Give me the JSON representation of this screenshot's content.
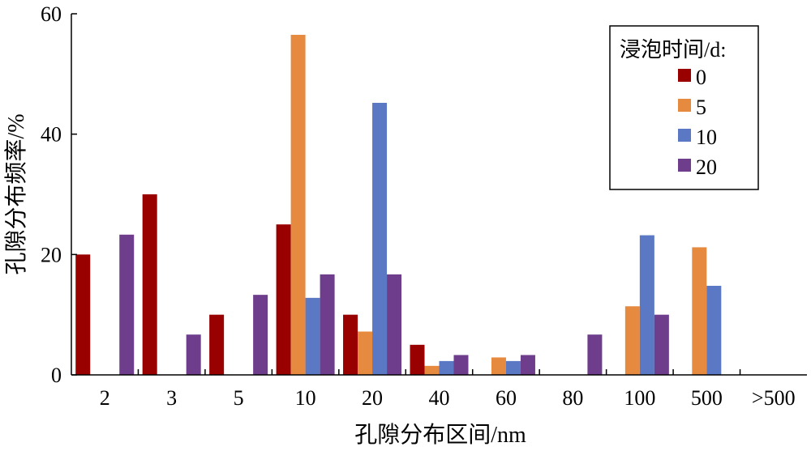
{
  "chart_data": {
    "type": "bar",
    "title": "",
    "xlabel": "孔隙分布区间/nm",
    "ylabel": "孔隙分布频率/%",
    "ylim": [
      0,
      60
    ],
    "yticks": [
      "0",
      "20",
      "40",
      "60"
    ],
    "categories": [
      "2",
      "3",
      "5",
      "10",
      "20",
      "40",
      "60",
      "80",
      "100",
      "500",
      ">500"
    ],
    "legend": {
      "title": "浸泡时间/d:",
      "position": "top-right"
    },
    "series": [
      {
        "name": "0",
        "color": "#990000",
        "values": [
          20,
          30,
          10,
          25,
          10,
          5,
          0,
          0,
          0,
          0,
          0
        ]
      },
      {
        "name": "5",
        "color": "#E68A40",
        "values": [
          0,
          0,
          0,
          56.5,
          7.2,
          1.5,
          2.9,
          0,
          11.4,
          21.2,
          0
        ]
      },
      {
        "name": "10",
        "color": "#5B78C4",
        "values": [
          0,
          0,
          0,
          12.8,
          45.2,
          2.3,
          2.3,
          0,
          23.2,
          14.8,
          0
        ]
      },
      {
        "name": "20",
        "color": "#6E3D8C",
        "values": [
          23.3,
          6.7,
          13.3,
          16.7,
          16.7,
          3.3,
          3.3,
          6.7,
          10,
          0,
          0
        ]
      }
    ]
  }
}
